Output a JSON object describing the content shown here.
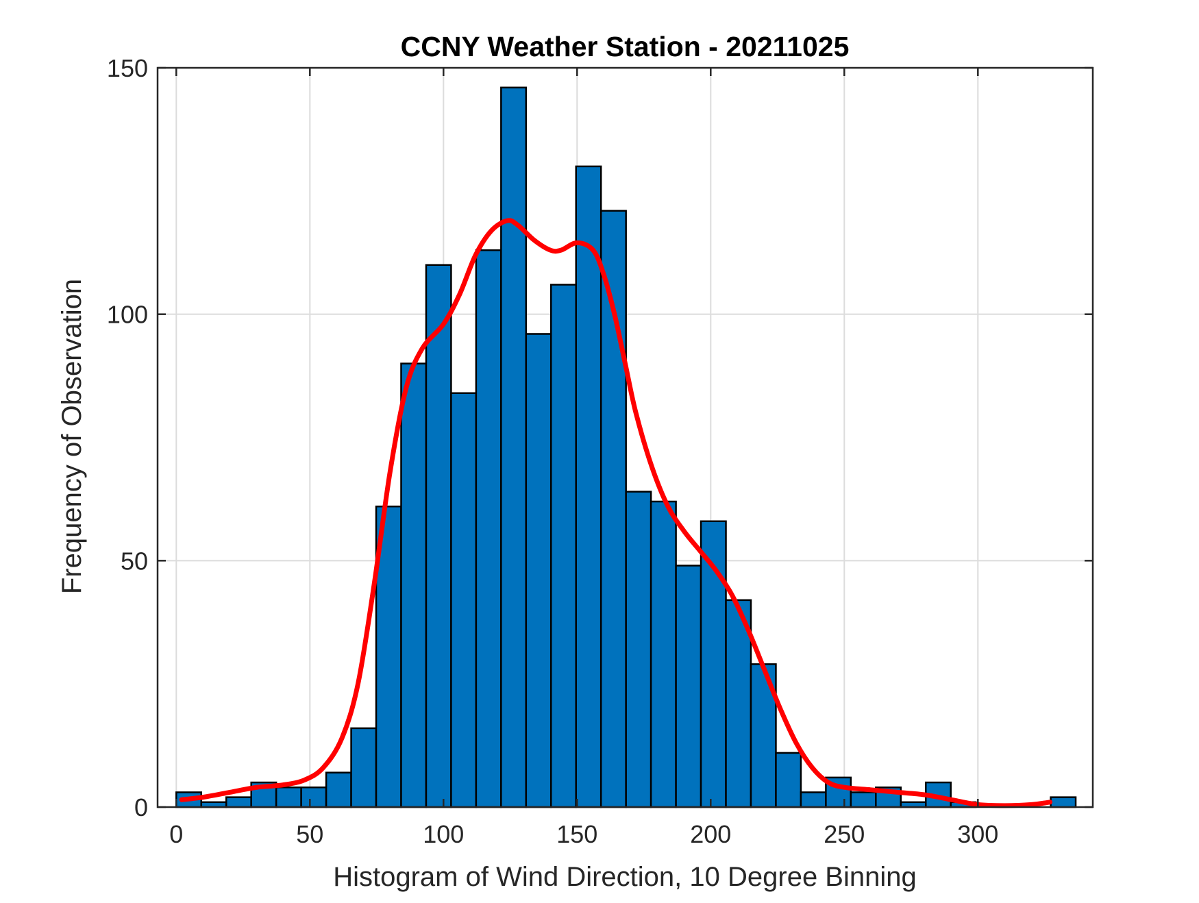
{
  "chart_data": {
    "type": "bar",
    "title": "CCNY Weather Station - 20211025",
    "xlabel": "Histogram of Wind Direction, 10 Degree Binning",
    "ylabel": "Frequency of Observation",
    "xlim": [
      -7,
      343
    ],
    "ylim": [
      0,
      150
    ],
    "xticks": [
      0,
      50,
      100,
      150,
      200,
      250,
      300
    ],
    "yticks": [
      0,
      50,
      100,
      150
    ],
    "grid": true,
    "bin_width": 9.35,
    "bin_starts": [
      0,
      9.35,
      18.7,
      28.05,
      37.4,
      46.75,
      56.1,
      65.45,
      74.8,
      84.15,
      93.5,
      102.85,
      112.2,
      121.55,
      130.9,
      140.25,
      149.6,
      158.95,
      168.3,
      177.65,
      187,
      196.35,
      205.7,
      215.05,
      224.4,
      233.75,
      243.1,
      252.45,
      261.8,
      271.15,
      280.5,
      289.85,
      299.2,
      308.55,
      317.9,
      327.25
    ],
    "values": [
      3,
      1,
      2,
      5,
      4,
      4,
      7,
      16,
      61,
      90,
      110,
      84,
      113,
      146,
      96,
      106,
      130,
      121,
      64,
      62,
      49,
      58,
      42,
      29,
      11,
      3,
      6,
      3,
      4,
      1,
      5,
      1,
      0,
      0,
      0,
      2
    ],
    "bar_color": "#0072BD",
    "density_curve": {
      "color": "#FF0000",
      "x": [
        2,
        10,
        20,
        30,
        40,
        48,
        55,
        62,
        68,
        74,
        80,
        86,
        92,
        100,
        106,
        112,
        118,
        124,
        128,
        134,
        140,
        144,
        150,
        156,
        160,
        164,
        168,
        172,
        178,
        184,
        190,
        196,
        202,
        208,
        214,
        220,
        226,
        232,
        238,
        244,
        250,
        260,
        270,
        280,
        290,
        300,
        310,
        320,
        327
      ],
      "y": [
        1.5,
        2,
        3,
        4,
        4.5,
        5.5,
        8,
        14,
        25,
        45,
        68,
        85,
        93,
        98,
        104,
        112,
        117,
        119,
        118,
        115,
        113,
        113,
        114.5,
        113,
        108,
        100,
        90,
        80,
        69,
        61,
        56,
        52,
        48,
        43,
        36,
        28,
        20,
        13,
        8,
        5,
        4,
        3.5,
        3,
        2.5,
        1.5,
        0.5,
        0.3,
        0.5,
        1
      ]
    }
  }
}
